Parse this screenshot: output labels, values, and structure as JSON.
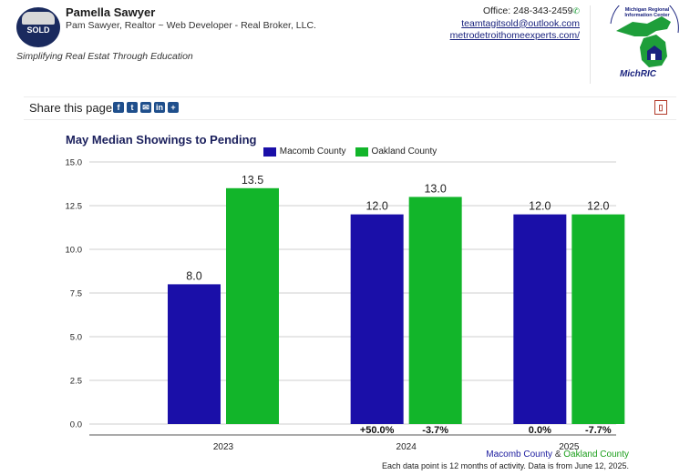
{
  "header": {
    "logo_text": "SOLD",
    "agent_name": "Pamella Sawyer",
    "agent_subtitle": "Pam Sawyer, Realtor ~ Web Developer - Real Broker, LLC.",
    "tagline": "Simplifying Real Estat Through Education",
    "office_phone": "Office: 248-343-2459",
    "email": "teamtagitsold@outlook.com",
    "website": "metrodetroithomeexperts.com/",
    "partner_logo_text": "Michigan Regional Information Center",
    "partner_brand": "MichRIC"
  },
  "share": {
    "label": "Share this page:",
    "icons": [
      "facebook-icon",
      "twitter-icon",
      "email-icon",
      "linkedin-icon",
      "plus-icon"
    ]
  },
  "colors": {
    "macomb": "#1a0fa8",
    "oakland": "#12b52a",
    "title": "#1a1f5c"
  },
  "chart_data": {
    "type": "bar",
    "title": "May Median Showings to Pending",
    "categories": [
      "2023",
      "2024",
      "2025"
    ],
    "series": [
      {
        "name": "Macomb County",
        "values": [
          8.0,
          12.0,
          12.0
        ],
        "changes": [
          "",
          "+50.0%",
          "0.0%"
        ]
      },
      {
        "name": "Oakland County",
        "values": [
          13.5,
          13.0,
          12.0
        ],
        "changes": [
          "",
          "-3.7%",
          "-7.7%"
        ]
      }
    ],
    "value_labels": [
      [
        "8.0",
        "12.0",
        "12.0"
      ],
      [
        "13.5",
        "13.0",
        "12.0"
      ]
    ],
    "ylim": [
      0,
      15
    ],
    "yticks": [
      "0.0",
      "2.5",
      "5.0",
      "7.5",
      "10.0",
      "12.5",
      "15.0"
    ],
    "grid": true,
    "legend_position": "top-center"
  },
  "footer": {
    "legend_macomb": "Macomb County",
    "legend_amp": "&",
    "legend_oakland": "Oakland County",
    "note": "Each data point is 12 months of activity. Data is from June 12, 2025."
  }
}
